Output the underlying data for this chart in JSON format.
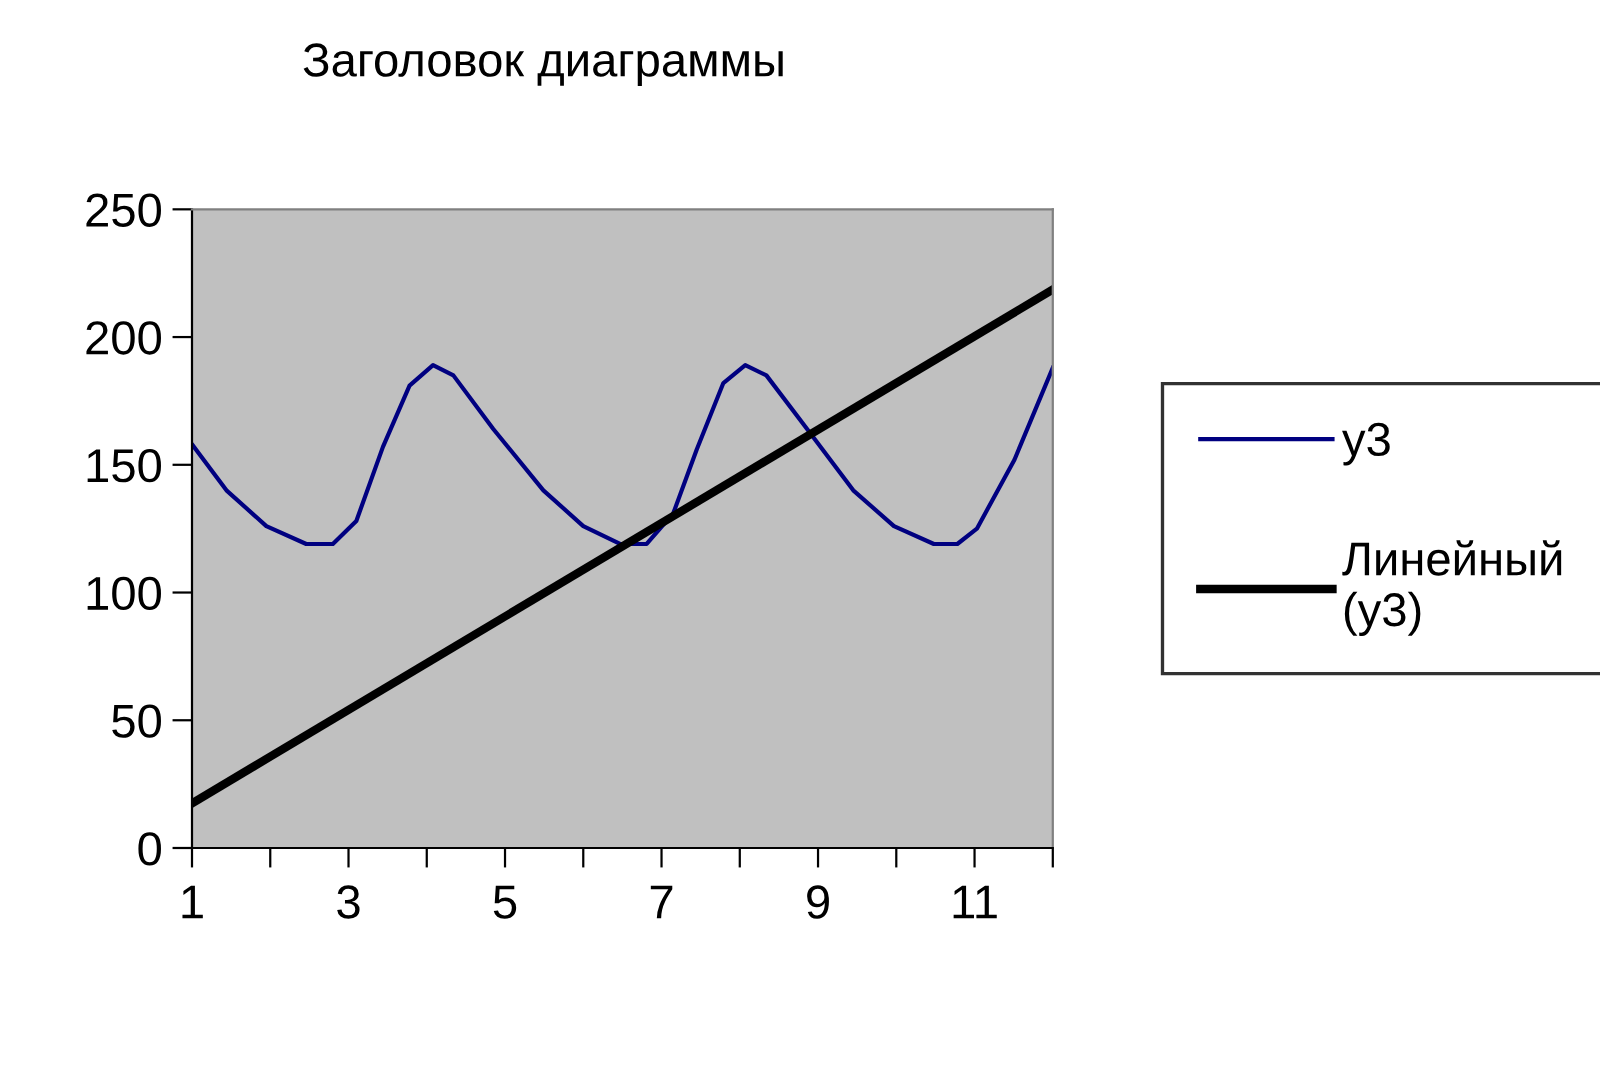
{
  "chart_data": {
    "type": "line",
    "title": "Заголовок диаграммы",
    "series": [
      {
        "name": "y3",
        "color": "#000080",
        "x": [
          1,
          1.44,
          1.95,
          2.46,
          2.8,
          3.1,
          3.44,
          3.78,
          4.08,
          4.34,
          4.85,
          5.49,
          6.0,
          6.47,
          6.81,
          7.15,
          7.45,
          7.79,
          8.07,
          8.34,
          8.86,
          9.45,
          9.97,
          10.48,
          10.78,
          11.03,
          11.51,
          12
        ],
        "values": [
          158,
          140,
          126,
          119,
          119,
          128,
          157,
          181,
          189,
          185,
          164,
          140,
          126,
          119,
          119,
          131,
          156,
          182,
          189,
          185,
          164,
          140,
          126,
          119,
          119,
          125,
          152,
          188
        ]
      },
      {
        "name": "Линейный (y3)",
        "color": "#000000",
        "x": [
          1,
          12
        ],
        "values": [
          17.5,
          218.6
        ]
      }
    ],
    "xlim": [
      1,
      12
    ],
    "xticks": [
      1,
      {
        "value": 2,
        "label": null
      },
      3,
      {
        "value": 4,
        "label": null
      },
      5,
      {
        "value": 6,
        "label": null
      },
      7,
      {
        "value": 8,
        "label": null
      },
      9,
      {
        "value": 10,
        "label": null
      },
      11,
      {
        "value": 12,
        "label": null
      }
    ],
    "ylim": [
      0,
      250
    ],
    "yticks": [
      0,
      50,
      100,
      150,
      200,
      250
    ],
    "grid": false,
    "legend": "right",
    "marker": "none",
    "line_style": "solid"
  }
}
